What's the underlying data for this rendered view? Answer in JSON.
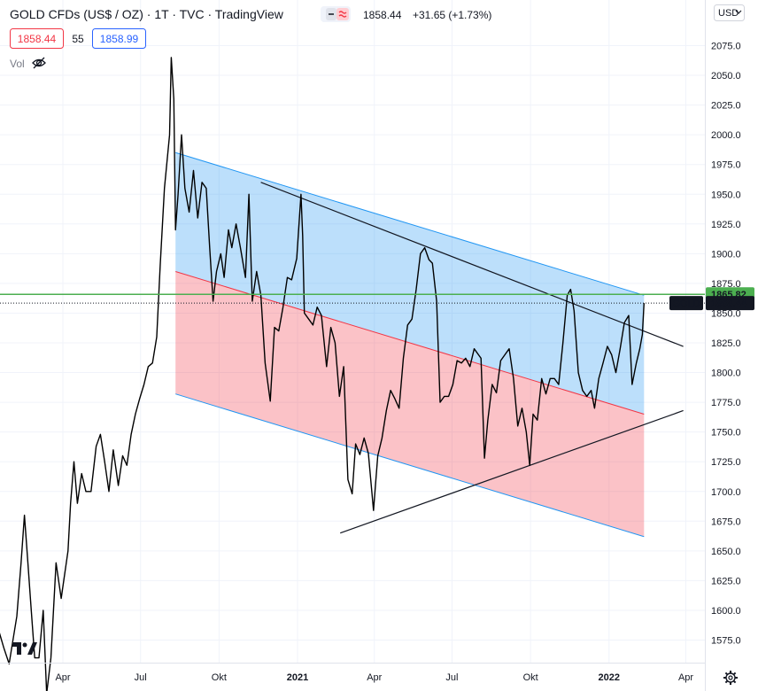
{
  "header": {
    "title": "GOLD CFDs (US$ / OZ) · 1T · TVC · TradingView",
    "price": "1858.44",
    "change": "+31.65 (+1.73%)",
    "bid": "1858.44",
    "spread": "55",
    "ask": "1858.99",
    "vol_label": "Vol",
    "currency": "USD"
  },
  "colors": {
    "line": "#000000",
    "upper_channel": "#2196f3",
    "lower_channel": "#f23645",
    "hline": "#4caf50",
    "bid_box": "#f23645",
    "ask_box": "#2962ff"
  },
  "chart_data": {
    "type": "line",
    "symbol": "GOLD",
    "y_axis": {
      "min": 1550,
      "max": 2100,
      "ticks": [
        1575,
        1600,
        1625,
        1650,
        1675,
        1700,
        1725,
        1750,
        1775,
        1800,
        1825,
        1850,
        1875,
        1900,
        1925,
        1950,
        1975,
        2000,
        2025,
        2050,
        2075
      ]
    },
    "x_axis": {
      "ticks": [
        "Apr",
        "Jul",
        "Okt",
        "2021",
        "Apr",
        "Jul",
        "Okt",
        "2022",
        "Apr"
      ],
      "tick_dates": [
        "2020-04-01",
        "2020-07-01",
        "2020-10-01",
        "2021-01-01",
        "2021-04-01",
        "2021-07-01",
        "2021-10-01",
        "2022-01-01",
        "2022-04-01"
      ]
    },
    "grid": true,
    "price_labels": [
      {
        "text": "1865.82",
        "value": 1865.82,
        "style": "green"
      },
      {
        "text": "1858.44",
        "value": 1858.44,
        "style": "dark"
      },
      {
        "text": "GOLD",
        "value": 1858.44,
        "style": "dark"
      }
    ],
    "horizontal_line": {
      "value": 1865.82
    },
    "last_price_line": {
      "value": 1858.44
    },
    "series": [
      {
        "values_date_price": [
          [
            "2020-01-07",
            1575
          ],
          [
            "2020-01-10",
            1595
          ],
          [
            "2020-01-16",
            1585
          ],
          [
            "2020-01-23",
            1568
          ],
          [
            "2020-01-29",
            1555
          ],
          [
            "2020-02-07",
            1595
          ],
          [
            "2020-02-12",
            1640
          ],
          [
            "2020-02-16",
            1680
          ],
          [
            "2020-02-20",
            1640
          ],
          [
            "2020-02-24",
            1600
          ],
          [
            "2020-02-28",
            1560
          ],
          [
            "2020-03-04",
            1560
          ],
          [
            "2020-03-09",
            1600
          ],
          [
            "2020-03-13",
            1530
          ],
          [
            "2020-03-18",
            1560
          ],
          [
            "2020-03-24",
            1640
          ],
          [
            "2020-03-30",
            1610
          ],
          [
            "2020-04-07",
            1650
          ],
          [
            "2020-04-10",
            1690
          ],
          [
            "2020-04-14",
            1725
          ],
          [
            "2020-04-18",
            1690
          ],
          [
            "2020-04-23",
            1715
          ],
          [
            "2020-04-28",
            1700
          ],
          [
            "2020-05-04",
            1700
          ],
          [
            "2020-05-10",
            1738
          ],
          [
            "2020-05-15",
            1748
          ],
          [
            "2020-05-20",
            1725
          ],
          [
            "2020-05-25",
            1700
          ],
          [
            "2020-05-30",
            1735
          ],
          [
            "2020-06-05",
            1705
          ],
          [
            "2020-06-10",
            1730
          ],
          [
            "2020-06-15",
            1722
          ],
          [
            "2020-06-20",
            1748
          ],
          [
            "2020-06-25",
            1765
          ],
          [
            "2020-06-30",
            1778
          ],
          [
            "2020-07-05",
            1790
          ],
          [
            "2020-07-10",
            1805
          ],
          [
            "2020-07-15",
            1808
          ],
          [
            "2020-07-20",
            1830
          ],
          [
            "2020-07-24",
            1890
          ],
          [
            "2020-07-29",
            1955
          ],
          [
            "2020-08-04",
            2000
          ],
          [
            "2020-08-06",
            2065
          ],
          [
            "2020-08-09",
            2030
          ],
          [
            "2020-08-11",
            1920
          ],
          [
            "2020-08-14",
            1950
          ],
          [
            "2020-08-18",
            2000
          ],
          [
            "2020-08-22",
            1955
          ],
          [
            "2020-08-27",
            1935
          ],
          [
            "2020-09-01",
            1970
          ],
          [
            "2020-09-06",
            1930
          ],
          [
            "2020-09-11",
            1960
          ],
          [
            "2020-09-16",
            1955
          ],
          [
            "2020-09-20",
            1905
          ],
          [
            "2020-09-24",
            1860
          ],
          [
            "2020-09-28",
            1885
          ],
          [
            "2020-10-03",
            1900
          ],
          [
            "2020-10-07",
            1880
          ],
          [
            "2020-10-12",
            1920
          ],
          [
            "2020-10-16",
            1905
          ],
          [
            "2020-10-21",
            1925
          ],
          [
            "2020-10-26",
            1905
          ],
          [
            "2020-11-01",
            1880
          ],
          [
            "2020-11-05",
            1950
          ],
          [
            "2020-11-09",
            1860
          ],
          [
            "2020-11-14",
            1885
          ],
          [
            "2020-11-19",
            1865
          ],
          [
            "2020-11-24",
            1808
          ],
          [
            "2020-11-30",
            1776
          ],
          [
            "2020-12-05",
            1838
          ],
          [
            "2020-12-10",
            1835
          ],
          [
            "2020-12-15",
            1855
          ],
          [
            "2020-12-20",
            1880
          ],
          [
            "2020-12-25",
            1878
          ],
          [
            "2020-12-31",
            1896
          ],
          [
            "2021-01-05",
            1950
          ],
          [
            "2021-01-07",
            1915
          ],
          [
            "2021-01-09",
            1850
          ],
          [
            "2021-01-14",
            1845
          ],
          [
            "2021-01-19",
            1840
          ],
          [
            "2021-01-24",
            1855
          ],
          [
            "2021-01-29",
            1848
          ],
          [
            "2021-02-04",
            1805
          ],
          [
            "2021-02-09",
            1838
          ],
          [
            "2021-02-14",
            1825
          ],
          [
            "2021-02-19",
            1780
          ],
          [
            "2021-02-24",
            1805
          ],
          [
            "2021-03-01",
            1710
          ],
          [
            "2021-03-06",
            1698
          ],
          [
            "2021-03-10",
            1740
          ],
          [
            "2021-03-15",
            1731
          ],
          [
            "2021-03-20",
            1745
          ],
          [
            "2021-03-25",
            1732
          ],
          [
            "2021-03-31",
            1684
          ],
          [
            "2021-04-05",
            1730
          ],
          [
            "2021-04-10",
            1745
          ],
          [
            "2021-04-15",
            1768
          ],
          [
            "2021-04-20",
            1785
          ],
          [
            "2021-04-25",
            1778
          ],
          [
            "2021-04-30",
            1770
          ],
          [
            "2021-05-05",
            1812
          ],
          [
            "2021-05-10",
            1840
          ],
          [
            "2021-05-15",
            1845
          ],
          [
            "2021-05-20",
            1870
          ],
          [
            "2021-05-25",
            1900
          ],
          [
            "2021-05-30",
            1905
          ],
          [
            "2021-06-04",
            1895
          ],
          [
            "2021-06-08",
            1892
          ],
          [
            "2021-06-13",
            1860
          ],
          [
            "2021-06-17",
            1775
          ],
          [
            "2021-06-22",
            1780
          ],
          [
            "2021-06-27",
            1780
          ],
          [
            "2021-07-02",
            1790
          ],
          [
            "2021-07-07",
            1810
          ],
          [
            "2021-07-12",
            1808
          ],
          [
            "2021-07-17",
            1812
          ],
          [
            "2021-07-22",
            1805
          ],
          [
            "2021-07-27",
            1820
          ],
          [
            "2021-08-01",
            1815
          ],
          [
            "2021-08-04",
            1812
          ],
          [
            "2021-08-08",
            1728
          ],
          [
            "2021-08-12",
            1760
          ],
          [
            "2021-08-17",
            1790
          ],
          [
            "2021-08-22",
            1783
          ],
          [
            "2021-08-27",
            1810
          ],
          [
            "2021-09-01",
            1815
          ],
          [
            "2021-09-06",
            1820
          ],
          [
            "2021-09-11",
            1795
          ],
          [
            "2021-09-16",
            1755
          ],
          [
            "2021-09-21",
            1770
          ],
          [
            "2021-09-26",
            1750
          ],
          [
            "2021-09-30",
            1722
          ],
          [
            "2021-10-04",
            1765
          ],
          [
            "2021-10-09",
            1760
          ],
          [
            "2021-10-14",
            1795
          ],
          [
            "2021-10-19",
            1782
          ],
          [
            "2021-10-24",
            1795
          ],
          [
            "2021-10-29",
            1795
          ],
          [
            "2021-11-03",
            1790
          ],
          [
            "2021-11-08",
            1825
          ],
          [
            "2021-11-13",
            1865
          ],
          [
            "2021-11-17",
            1870
          ],
          [
            "2021-11-21",
            1852
          ],
          [
            "2021-11-26",
            1800
          ],
          [
            "2021-12-01",
            1785
          ],
          [
            "2021-12-06",
            1780
          ],
          [
            "2021-12-11",
            1785
          ],
          [
            "2021-12-15",
            1770
          ],
          [
            "2021-12-20",
            1795
          ],
          [
            "2021-12-25",
            1808
          ],
          [
            "2021-12-30",
            1822
          ],
          [
            "2022-01-04",
            1815
          ],
          [
            "2022-01-09",
            1800
          ],
          [
            "2022-01-14",
            1820
          ],
          [
            "2022-01-19",
            1842
          ],
          [
            "2022-01-24",
            1848
          ],
          [
            "2022-01-28",
            1790
          ],
          [
            "2022-02-02",
            1808
          ],
          [
            "2022-02-06",
            1820
          ],
          [
            "2022-02-09",
            1832
          ],
          [
            "2022-02-11",
            1858.44
          ]
        ]
      }
    ],
    "drawings": {
      "upper_channel": {
        "start": [
          "2020-08-11",
          1985
        ],
        "end": [
          "2022-02-11",
          1865
        ],
        "fill": "blue"
      },
      "mid_line": {
        "start": [
          "2020-08-11",
          1885
        ],
        "end": [
          "2022-02-11",
          1765
        ]
      },
      "lower_channel": {
        "start": [
          "2020-08-11",
          1782
        ],
        "end": [
          "2022-02-11",
          1662
        ],
        "fill": "red"
      },
      "resistance": {
        "start": [
          "2020-11-19",
          1960
        ],
        "end": [
          "2022-03-29",
          1822
        ]
      },
      "support": {
        "start": [
          "2021-02-20",
          1665
        ],
        "end": [
          "2022-03-29",
          1768
        ]
      }
    }
  }
}
